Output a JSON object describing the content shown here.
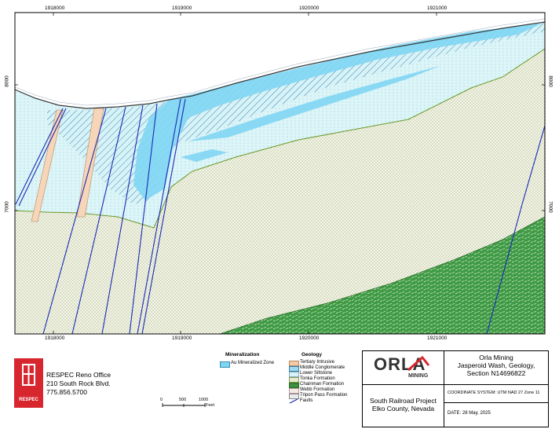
{
  "axes": {
    "x_ticks": [
      "1918000",
      "1919000",
      "1920000",
      "1921000"
    ],
    "y_ticks": [
      "8000",
      "7000"
    ]
  },
  "legend": {
    "mineralization_header": "Mineralization",
    "mineralization_items": [
      {
        "label": "Au Mineralized Zone",
        "color": "#7fd6f3"
      }
    ],
    "geology_header": "Geology",
    "geology_items": [
      {
        "label": "Tertiary Intrusive",
        "color": "#f6c9a8"
      },
      {
        "label": "Middle Conglomerate",
        "color": "#9fd9f0"
      },
      {
        "label": "Lower Siltstone",
        "color": "#d8f3f7"
      },
      {
        "label": "Tonka Formation",
        "color": "#e6ebcf"
      },
      {
        "label": "Chainman Formation",
        "color": "#3c8f3c"
      },
      {
        "label": "Webb Formation",
        "color": "#f3ece0"
      },
      {
        "label": "Tripon Pass Formation",
        "color": "#ececec"
      },
      {
        "label": "Faults",
        "color": "#1a2bb5"
      }
    ]
  },
  "office": {
    "logo_text": "RESPEC",
    "name": "RESPEC Reno Office",
    "street": "210 South Rock Blvd.",
    "phone": "775.856.5700"
  },
  "scalebar": {
    "labels": [
      "0",
      "500",
      "1000"
    ],
    "unit": "Feet"
  },
  "titleblock": {
    "logo_main": "ORLA",
    "logo_sub": "MINING",
    "company": "Orla Mining",
    "title_line1": "Jasperoid Wash, Geology,",
    "title_line2": "Section N14696822",
    "project_line1": "South Railroad Project",
    "project_line2": "Elko County, Nevada",
    "coord_system": "COORDINATE SYSTEM: UTM NAD 27 Zone 11",
    "date": "DATE:   28 May, 2025"
  },
  "colors": {
    "intrusive": "#f6d5b8",
    "mineralized": "#7fd6f3",
    "siltstone": "#d6f3f8",
    "tonka": "#eef2dc",
    "chainman": "#3f9a45",
    "faults": "#1a2bb5",
    "contact": "#6a9a2a"
  }
}
